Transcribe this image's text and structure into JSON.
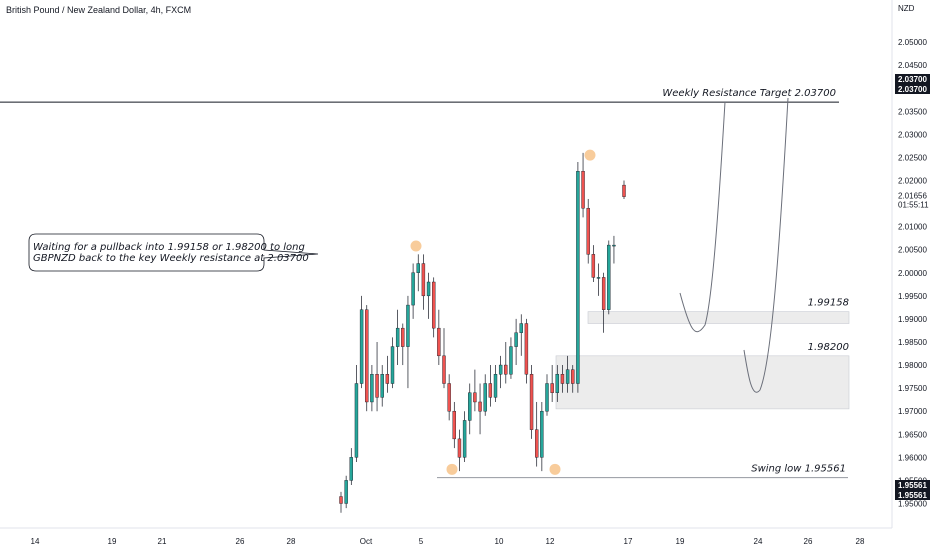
{
  "header": {
    "title": "British Pound / New Zealand Dollar, 4h, FXCM"
  },
  "chart_data": {
    "type": "candlestick",
    "currency_label": "NZD",
    "y_range": [
      1.9475,
      2.0575
    ],
    "y_ticks": [
      "2.05000",
      "2.04500",
      "2.04000",
      "2.03500",
      "2.03000",
      "2.02500",
      "2.02000",
      "2.01500",
      "2.01000",
      "2.00500",
      "2.00000",
      "1.99500",
      "1.99000",
      "1.98500",
      "1.98000",
      "1.97500",
      "1.97000",
      "1.96500",
      "1.96000",
      "1.95500",
      "1.95000"
    ],
    "x_ticks": [
      "14",
      "19",
      "21",
      "26",
      "28",
      "Oct",
      "5",
      "10",
      "12",
      "17",
      "19",
      "24",
      "26",
      "28"
    ],
    "current_price": {
      "value": "2.01656",
      "countdown": "01:55:11",
      "color": "#2962ff"
    },
    "level_tags": [
      {
        "value": 2.037,
        "label": "2.03700"
      },
      {
        "value": 2.037,
        "label": "2.03700"
      },
      {
        "value": 1.95561,
        "label": "1.95561"
      },
      {
        "value": 1.95561,
        "label": "1.95561"
      }
    ],
    "colors": {
      "up": "#26a69a",
      "down": "#ef5350",
      "highlight": "#f7c690",
      "zone": "#ececec"
    },
    "candles": [
      [
        1.9515,
        1.9525,
        1.948,
        1.95
      ],
      [
        1.95,
        1.956,
        1.949,
        1.955
      ],
      [
        1.955,
        1.962,
        1.954,
        1.96
      ],
      [
        1.96,
        1.98,
        1.959,
        1.976
      ],
      [
        1.976,
        1.995,
        1.975,
        1.992
      ],
      [
        1.992,
        1.993,
        1.97,
        1.972
      ],
      [
        1.972,
        1.98,
        1.97,
        1.978
      ],
      [
        1.978,
        1.985,
        1.97,
        1.973
      ],
      [
        1.973,
        1.98,
        1.971,
        1.978
      ],
      [
        1.978,
        1.982,
        1.974,
        1.976
      ],
      [
        1.976,
        1.986,
        1.975,
        1.984
      ],
      [
        1.984,
        1.992,
        1.98,
        1.988
      ],
      [
        1.988,
        1.989,
        1.98,
        1.984
      ],
      [
        1.984,
        1.995,
        1.975,
        1.993
      ],
      [
        1.993,
        2.002,
        1.99,
        2.0
      ],
      [
        2.0,
        2.004,
        1.996,
        2.002
      ],
      [
        2.002,
        2.004,
        1.992,
        1.995
      ],
      [
        1.995,
        2.0,
        1.99,
        1.998
      ],
      [
        1.998,
        1.999,
        1.986,
        1.988
      ],
      [
        1.988,
        1.992,
        1.98,
        1.982
      ],
      [
        1.982,
        1.988,
        1.975,
        1.976
      ],
      [
        1.976,
        1.978,
        1.968,
        1.97
      ],
      [
        1.97,
        1.972,
        1.962,
        1.964
      ],
      [
        1.964,
        1.966,
        1.957,
        1.96
      ],
      [
        1.96,
        1.97,
        1.959,
        1.968
      ],
      [
        1.968,
        1.976,
        1.965,
        1.974
      ],
      [
        1.974,
        1.979,
        1.97,
        1.972
      ],
      [
        1.972,
        1.976,
        1.965,
        1.97
      ],
      [
        1.97,
        1.978,
        1.969,
        1.976
      ],
      [
        1.976,
        1.98,
        1.971,
        1.973
      ],
      [
        1.973,
        1.98,
        1.972,
        1.978
      ],
      [
        1.978,
        1.982,
        1.975,
        1.98
      ],
      [
        1.98,
        1.985,
        1.976,
        1.978
      ],
      [
        1.978,
        1.986,
        1.977,
        1.984
      ],
      [
        1.984,
        1.99,
        1.98,
        1.987
      ],
      [
        1.987,
        1.991,
        1.982,
        1.989
      ],
      [
        1.989,
        1.99,
        1.976,
        1.978
      ],
      [
        1.978,
        1.98,
        1.964,
        1.966
      ],
      [
        1.966,
        1.972,
        1.958,
        1.96
      ],
      [
        1.96,
        1.972,
        1.957,
        1.97
      ],
      [
        1.97,
        1.978,
        1.969,
        1.976
      ],
      [
        1.976,
        1.98,
        1.972,
        1.974
      ],
      [
        1.974,
        1.98,
        1.972,
        1.978
      ],
      [
        1.978,
        1.98,
        1.974,
        1.976
      ],
      [
        1.976,
        1.982,
        1.974,
        1.979
      ],
      [
        1.979,
        1.98,
        1.974,
        1.976
      ],
      [
        1.976,
        2.024,
        1.974,
        2.022
      ],
      [
        2.022,
        2.026,
        2.012,
        2.014
      ],
      [
        2.014,
        2.016,
        2.002,
        2.004
      ],
      [
        2.004,
        2.006,
        1.998,
        1.999
      ],
      [
        1.999,
        2.002,
        1.995,
        1.999
      ],
      [
        1.999,
        2.0,
        1.987,
        1.992
      ],
      [
        1.992,
        2.007,
        1.991,
        2.006
      ],
      [
        2.006,
        2.008,
        2.002,
        2.006
      ],
      [
        2.019,
        2.02,
        2.016,
        2.0165
      ]
    ],
    "zones": [
      {
        "top": 1.99158,
        "bottom": 1.989,
        "label": "1.99158"
      },
      {
        "top": 1.982,
        "bottom": 1.9705,
        "label": "1.98200"
      }
    ],
    "weekly_resistance": {
      "value": 2.037,
      "label": "Weekly Resistance Target 2.03700"
    },
    "swing_low": {
      "value": 1.95561,
      "label": "Swing low 1.95561"
    },
    "callout": [
      "Waiting for a pullback into 1.99158 or 1.98200 to long",
      "GBPNZD back to the key Weekly resistance at 2.03700"
    ],
    "marker_values": [
      2.0058,
      2.0255,
      1.9574,
      1.9574
    ]
  }
}
